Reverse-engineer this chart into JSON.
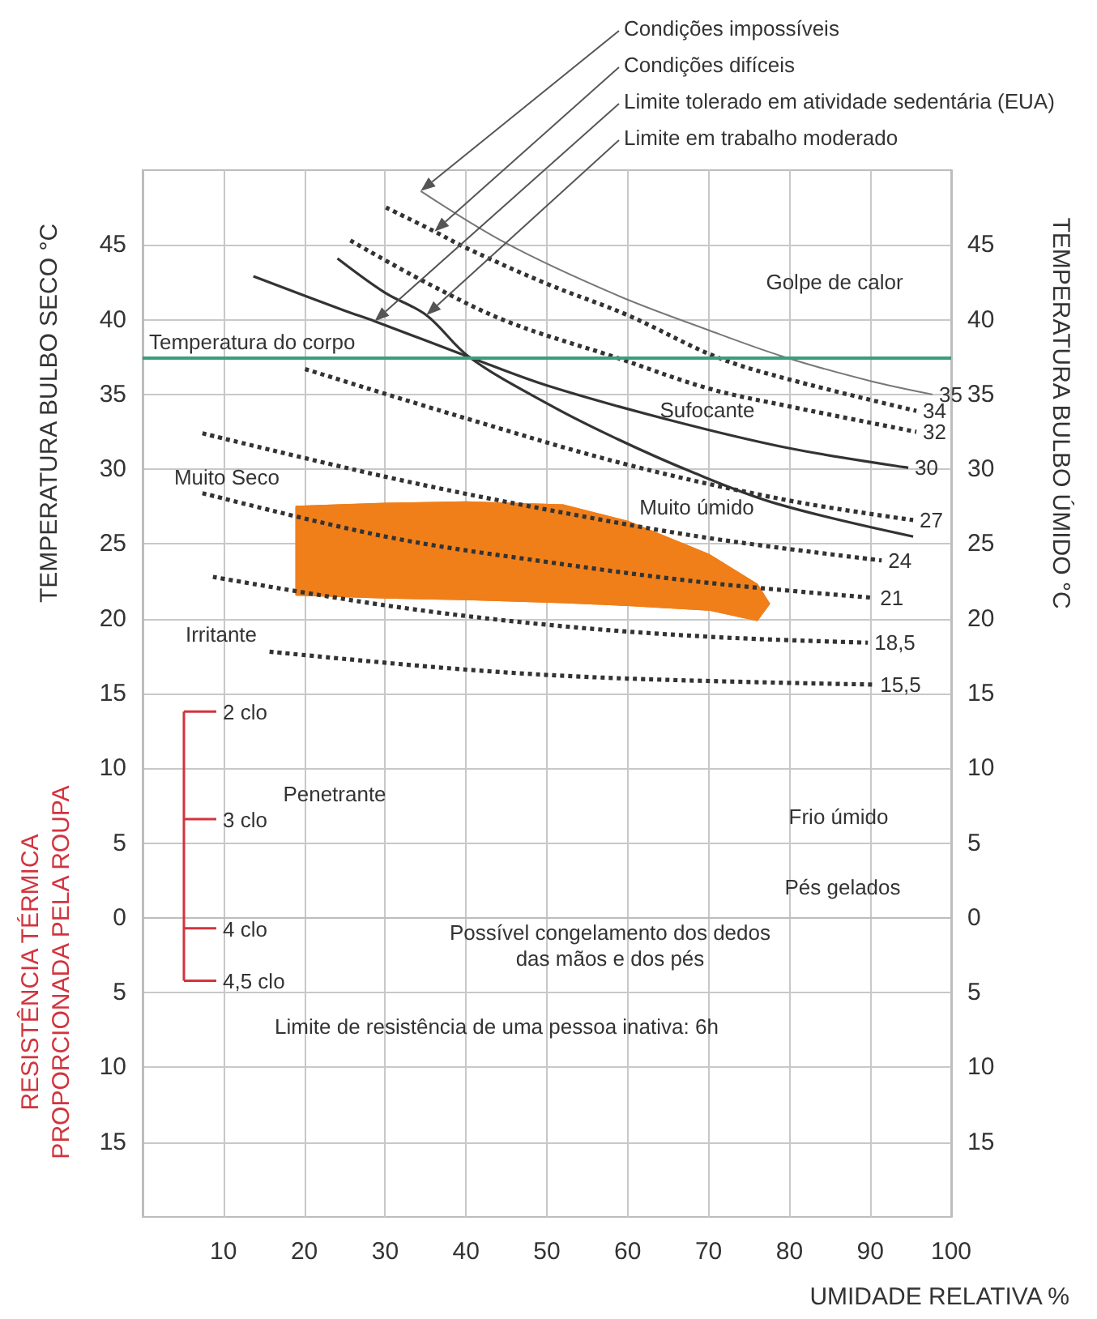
{
  "chart_data": {
    "type": "line",
    "xlabel": "UMIDADE RELATIVA %",
    "ylabel": "TEMPERATURA BULBO SECO °C",
    "y2label": "TEMPERATURA BULBO ÚMIDO °C",
    "xlim": [
      0,
      100
    ],
    "xticks": [
      10,
      20,
      30,
      40,
      50,
      60,
      70,
      80,
      90,
      100
    ],
    "ylim": [
      -20,
      50
    ],
    "yticks": [
      {
        "value": -15,
        "label": "15"
      },
      {
        "value": -10,
        "label": "10"
      },
      {
        "value": -5,
        "label": "5"
      },
      0,
      5,
      10,
      15,
      20,
      25,
      30,
      35,
      40,
      45
    ],
    "y2lim": [
      -20,
      50
    ],
    "y2ticks": [
      {
        "value": -15,
        "label": "15"
      },
      {
        "value": -10,
        "label": "10"
      },
      {
        "value": -5,
        "label": "5"
      },
      0,
      5,
      10,
      15,
      20,
      25,
      30,
      35,
      40,
      45
    ],
    "grid": true,
    "legend": false,
    "marker": "none",
    "series": [
      {
        "type": "area",
        "color": "#f07f1a",
        "x": [
          19,
          30,
          40,
          52,
          60,
          70,
          76,
          77.5,
          76,
          70,
          60,
          52,
          40,
          30,
          19,
          19
        ],
        "values": [
          27.5,
          27.7,
          27.8,
          27.6,
          26.5,
          24.3,
          22.3,
          21,
          19.9,
          20.6,
          20.9,
          21.1,
          21.3,
          21.4,
          21.6,
          27.5
        ]
      },
      {
        "name": "35",
        "color": "#777777",
        "line_style": "solid",
        "x": [
          34.4,
          45,
          58.4,
          70,
          79.4,
          90,
          97.7
        ],
        "values": [
          48.6,
          45.1,
          41.7,
          39.3,
          37.5,
          35.9,
          35
        ]
      },
      {
        "name": "34",
        "color": "#333333",
        "line_style": "dotted",
        "x": [
          30.1,
          36.1,
          40,
          50,
          60,
          71,
          80,
          95.7
        ],
        "values": [
          47.5,
          45.9,
          44.8,
          42.4,
          40.3,
          37.5,
          36,
          33.9
        ]
      },
      {
        "name": "32",
        "color": "#333333",
        "line_style": "dotted",
        "x": [
          25.7,
          35,
          45,
          58.4,
          70,
          80,
          95.7
        ],
        "values": [
          45.3,
          42.5,
          39.9,
          37.5,
          35.4,
          34.2,
          32.5
        ]
      },
      {
        "name": "30",
        "color": "#333333",
        "line_style": "solid",
        "x": [
          13.7,
          25,
          28.7,
          40.4,
          50,
          65.1,
          80,
          94.7
        ],
        "values": [
          42.9,
          40.6,
          39.9,
          37.5,
          35.6,
          33.3,
          31.4,
          30.1
        ]
      },
      {
        "color": "#333333",
        "line_style": "solid",
        "x": [
          24.1,
          30,
          35.1,
          40.4,
          50,
          58.4,
          68,
          78.4,
          95.3
        ],
        "values": [
          44.1,
          41.8,
          40.3,
          37.5,
          34.4,
          32.1,
          29.8,
          27.7,
          25.5
        ]
      },
      {
        "name": "27",
        "color": "#333333",
        "line_style": "dotted",
        "x": [
          20.1,
          40,
          60,
          80,
          95.3
        ],
        "values": [
          36.7,
          33.4,
          30.3,
          27.9,
          26.6
        ]
      },
      {
        "name": "24",
        "color": "#333333",
        "line_style": "dotted",
        "x": [
          7.4,
          30,
          50,
          70,
          91.4
        ],
        "values": [
          32.4,
          29.5,
          27.3,
          25.4,
          23.9
        ]
      },
      {
        "name": "21",
        "color": "#333333",
        "line_style": "dotted",
        "x": [
          7.4,
          30,
          50,
          70,
          90.4
        ],
        "values": [
          28.4,
          25.5,
          23.8,
          22.4,
          21.4
        ]
      },
      {
        "name": "18,5",
        "color": "#333333",
        "line_style": "dotted",
        "x": [
          8.7,
          30,
          50,
          70,
          89.7
        ],
        "values": [
          22.8,
          20.9,
          19.6,
          18.8,
          18.4
        ]
      },
      {
        "name": "15,5",
        "color": "#333333",
        "line_style": "dotted",
        "x": [
          15.7,
          40,
          60,
          90.4
        ],
        "values": [
          17.8,
          16.6,
          16,
          15.6
        ]
      }
    ],
    "ref_lines": [
      {
        "axis": "y",
        "value": 37.5,
        "label": "Temperatura do corpo",
        "color": "#3a9e7e"
      }
    ],
    "annotations": [
      {
        "text": "Condições impossíveis",
        "x": 34.4,
        "y": 48.6
      },
      {
        "text": "Condições difíceis",
        "x": 36.1,
        "y": 45.9
      },
      {
        "text": "Limite tolerado em atividade sedentária (EUA)",
        "x": 28.7,
        "y": 39.9
      },
      {
        "text": "Limite em trabalho moderado",
        "x": 35.1,
        "y": 40.3
      },
      "2 clo",
      "3 clo",
      "4 clo",
      "4,5 clo",
      "Golpe de calor",
      "Sufocante",
      "Muito úmido",
      "Muito Seco",
      "Irritante",
      "Penetrante",
      "Frio úmido",
      "Pés gelados",
      "Possível congelamento dos dedos\ndas mãos e dos pés",
      "Limite de resistência de uma pessoa inativa: 6h",
      "RESISTÊNCIA TÉRMICA\nPROPORCIONADA PELA ROUPA"
    ]
  }
}
